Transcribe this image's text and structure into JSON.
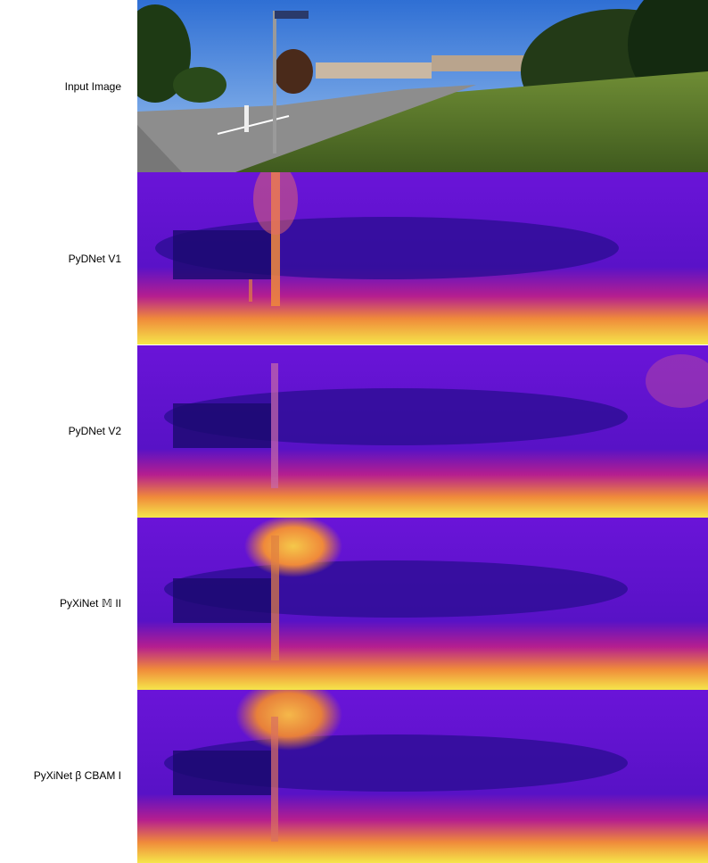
{
  "rows": [
    {
      "label": "Input Image"
    },
    {
      "label": "PyDNet V1"
    },
    {
      "label": "PyDNet V2"
    },
    {
      "label": "PyXiNet 𝕄 II"
    },
    {
      "label": "PyXiNet β CBAM I"
    }
  ],
  "colors": {
    "plasma_dark": "#1a0a6e",
    "plasma_purple": "#6a14d8",
    "plasma_magenta": "#b51e8f",
    "plasma_orange": "#f08a3a",
    "plasma_yellow": "#f5e64a",
    "sky_blue": "#3b7fd8",
    "grass_green": "#5a7a2a",
    "road_gray": "#8a8a8a"
  }
}
